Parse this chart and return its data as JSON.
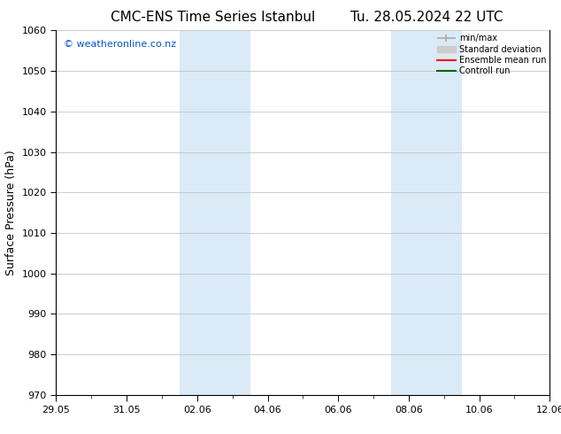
{
  "title_left": "CMC-ENS Time Series Istanbul",
  "title_right": "Tu. 28.05.2024 22 UTC",
  "ylabel": "Surface Pressure (hPa)",
  "ylim": [
    970,
    1060
  ],
  "yticks": [
    970,
    980,
    990,
    1000,
    1010,
    1020,
    1030,
    1040,
    1050,
    1060
  ],
  "xlim_start": 0,
  "xlim_end": 14,
  "xtick_labels": [
    "29.05",
    "31.05",
    "02.06",
    "04.06",
    "06.06",
    "08.06",
    "10.06",
    "12.06"
  ],
  "xtick_positions": [
    0,
    2,
    4,
    6,
    8,
    10,
    12,
    14
  ],
  "shaded_bands": [
    {
      "x_start": 3.5,
      "x_end": 5.5,
      "color": "#daeaf7"
    },
    {
      "x_start": 9.5,
      "x_end": 11.5,
      "color": "#daeaf7"
    }
  ],
  "watermark": "© weatheronline.co.nz",
  "watermark_color": "#0055cc",
  "legend_items": [
    {
      "label": "min/max",
      "color": "#aaaaaa",
      "lw": 1.2
    },
    {
      "label": "Standard deviation",
      "color": "#cccccc",
      "lw": 7
    },
    {
      "label": "Ensemble mean run",
      "color": "#ff0000",
      "lw": 1.5
    },
    {
      "label": "Controll run",
      "color": "#006600",
      "lw": 1.5
    }
  ],
  "grid_color": "#bbbbbb",
  "background_color": "#ffffff",
  "plot_bg_color": "#ffffff",
  "title_fontsize": 11,
  "ylabel_fontsize": 9,
  "tick_fontsize": 8,
  "legend_fontsize": 7,
  "watermark_fontsize": 8
}
